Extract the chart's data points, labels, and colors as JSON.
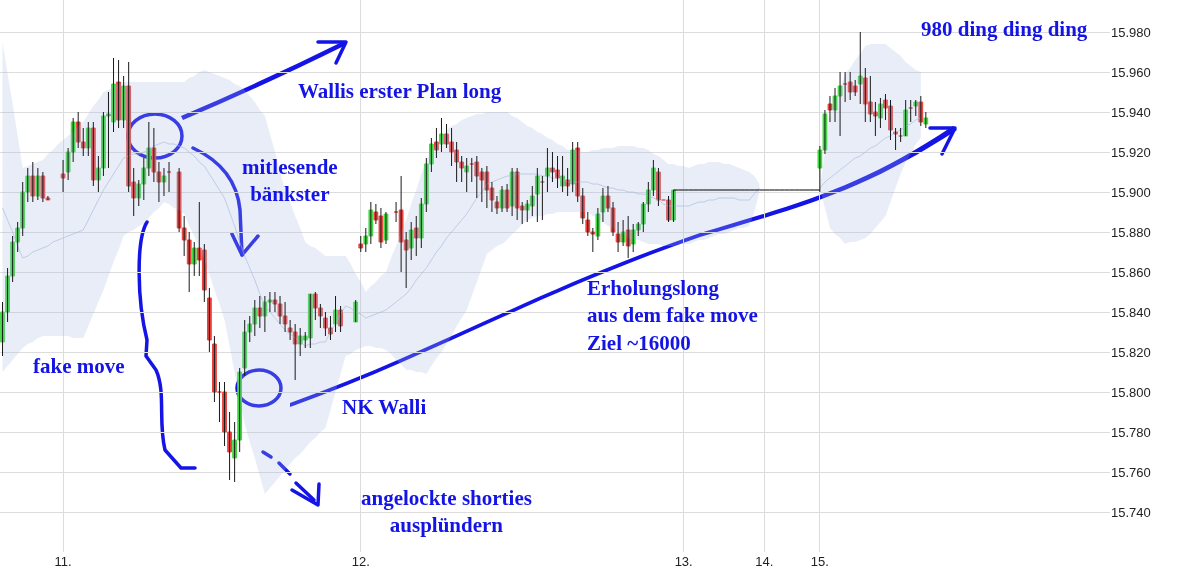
{
  "chart_data": {
    "type": "candlestick",
    "categories": [
      null,
      null,
      null,
      null,
      null,
      null,
      null,
      null,
      null,
      null,
      null,
      null,
      "11.",
      null,
      null,
      null,
      null,
      null,
      null,
      null,
      null,
      null,
      null,
      null,
      null,
      null,
      null,
      null,
      null,
      null,
      null,
      null,
      null,
      null,
      null,
      null,
      null,
      null,
      null,
      null,
      null,
      null,
      null,
      null,
      null,
      null,
      null,
      null,
      null,
      null,
      null,
      null,
      null,
      null,
      null,
      null,
      null,
      null,
      null,
      null,
      null,
      null,
      null,
      null,
      null,
      null,
      null,
      null,
      null,
      null,
      null,
      "12.",
      null,
      null,
      null,
      null,
      null,
      null,
      null,
      null,
      null,
      null,
      null,
      null,
      null,
      null,
      null,
      null,
      null,
      null,
      null,
      null,
      null,
      null,
      null,
      null,
      null,
      null,
      null,
      null,
      null,
      null,
      null,
      null,
      null,
      null,
      null,
      null,
      null,
      null,
      null,
      null,
      null,
      null,
      null,
      null,
      null,
      null,
      null,
      null,
      null,
      null,
      null,
      null,
      null,
      null,
      null,
      null,
      null,
      null,
      null,
      null,
      null,
      null,
      null,
      "13.",
      null,
      null,
      null,
      null,
      null,
      null,
      null,
      null,
      null,
      null,
      null,
      null,
      null,
      null,
      null,
      "14.",
      null,
      null,
      null,
      null,
      null,
      null,
      null,
      null,
      null,
      null,
      "15.",
      null,
      null,
      null,
      null,
      null,
      null,
      null,
      null,
      null,
      null,
      null,
      null,
      null,
      null,
      null,
      null,
      null,
      null,
      null,
      null,
      null,
      null,
      null,
      null,
      null,
      null,
      null,
      null,
      null,
      null,
      null,
      null,
      null,
      null,
      null,
      null,
      null,
      null,
      null,
      null,
      null,
      null,
      null,
      null,
      null,
      null,
      null,
      null,
      null,
      null,
      null,
      null,
      null,
      null,
      null,
      null,
      null
    ],
    "ylim": [
      15720,
      15996
    ],
    "yticks": [
      {
        "value": 15740,
        "label": "15.740"
      },
      {
        "value": 15760,
        "label": "15.760"
      },
      {
        "value": 15780,
        "label": "15.780"
      },
      {
        "value": 15800,
        "label": "15.800"
      },
      {
        "value": 15820,
        "label": "15.820"
      },
      {
        "value": 15840,
        "label": "15.840"
      },
      {
        "value": 15860,
        "label": "15.860"
      },
      {
        "value": 15880,
        "label": "15.880"
      },
      {
        "value": 15900,
        "label": "15.900"
      },
      {
        "value": 15920,
        "label": "15.920"
      },
      {
        "value": 15940,
        "label": "15.940"
      },
      {
        "value": 15960,
        "label": "15.960"
      },
      {
        "value": 15980,
        "label": "15.980"
      }
    ],
    "grid": true,
    "annotations": [
      "980 ding ding ding",
      "Wallis erster Plan long",
      "mitlesende\nbänkster",
      "fake move",
      "NK Walli",
      "angelockte shorties\nausplündern",
      "Erholungslong\naus dem fake move\nZiel ~16000"
    ],
    "series": [
      {
        "type": "line",
        "color": "#a4b8de",
        "values": [
          15892,
          15886,
          15880,
          15873,
          15867,
          15868,
          15870,
          15871,
          15872,
          15873,
          15875,
          15876,
          15877,
          15878,
          15879,
          15880,
          15881,
          15886,
          15891,
          15896,
          15901,
          15905,
          15909,
          15913,
          15917,
          15918,
          15919,
          15919,
          15920,
          15921,
          15923,
          15924,
          15925,
          15924,
          15924,
          15923,
          15922,
          15920,
          15918,
          15915,
          15913,
          15909,
          15905,
          15901,
          15897,
          15890,
          15883,
          15875,
          15868,
          15862,
          15856,
          15849,
          15843,
          15840,
          15837,
          15834,
          15831,
          15829,
          15827,
          15825,
          15823,
          15824,
          15824,
          15825,
          15825,
          15830,
          15834,
          15839,
          15843,
          15842,
          15840,
          15839,
          15837,
          15838,
          15839,
          15840,
          15841,
          15843,
          15845,
          15847,
          15849,
          15852,
          15856,
          15859,
          15862,
          15866,
          15870,
          15873,
          15877,
          15880,
          15883,
          15886,
          15889,
          15893,
          15897,
          15900,
          15904,
          15905,
          15906,
          15907,
          15908,
          15908,
          15909,
          15909,
          15909,
          15909,
          15909,
          15908,
          15908,
          15907,
          15907,
          15906,
          15905,
          15905,
          15905,
          15905,
          15905,
          15904,
          15904,
          15903,
          15902,
          15902,
          15901,
          15901,
          15900,
          15900,
          15899,
          15899,
          15898,
          15897,
          15896,
          15894,
          15893,
          15893,
          15893,
          15893,
          15893,
          15894,
          15895,
          15895,
          15896,
          15896,
          15897,
          15897,
          15897,
          15897,
          15896,
          15896,
          15896,
          15899,
          15902,
          null,
          null,
          null,
          null,
          null,
          null,
          null,
          null,
          null,
          null,
          null,
          15902,
          15905,
          15907,
          15909,
          15911,
          15913,
          15915,
          15917,
          15918,
          15920,
          15922,
          15923,
          15925,
          15927,
          15928,
          15930,
          15931,
          15933,
          15934,
          15936,
          15937,
          null,
          null,
          null,
          null,
          null,
          null,
          null,
          null,
          null,
          null,
          null,
          null,
          null,
          null,
          null,
          null,
          null,
          null,
          null,
          null,
          null,
          null,
          null,
          null,
          null,
          null,
          null,
          null,
          null,
          null,
          null,
          null,
          null,
          null,
          null,
          null,
          null
        ],
        "upper": [
          15975,
          15959,
          15944,
          15928,
          15912,
          15913,
          15914,
          15915,
          15916,
          15919,
          15921,
          15924,
          15926,
          15928,
          15930,
          15933,
          15935,
          15939,
          15943,
          15946,
          15950,
          15951,
          15953,
          15954,
          15955,
          15955,
          15955,
          15955,
          15955,
          15955,
          15955,
          15955,
          15955,
          15955,
          15955,
          15955,
          15955,
          15957,
          15958,
          15960,
          15961,
          15960,
          15959,
          15958,
          15957,
          15956,
          15954,
          15953,
          15951,
          15948,
          15945,
          15941,
          15938,
          15929,
          15920,
          15910,
          15901,
          15895,
          15888,
          15882,
          15875,
          15873,
          15872,
          15870,
          15868,
          15868,
          15868,
          15868,
          15868,
          15864,
          15859,
          15855,
          15850,
          15853,
          15855,
          15858,
          15860,
          15867,
          15873,
          15880,
          15886,
          15894,
          15901,
          15909,
          15916,
          15920,
          15924,
          15927,
          15931,
          15933,
          15934,
          15936,
          15937,
          15938,
          15939,
          15939,
          15940,
          15940,
          15940,
          15940,
          15940,
          15938,
          15937,
          15935,
          15933,
          15932,
          15930,
          15929,
          15927,
          15926,
          15924,
          15923,
          15921,
          15921,
          15921,
          15920,
          15920,
          15921,
          15921,
          15922,
          15922,
          15922,
          15923,
          15923,
          15923,
          15923,
          15922,
          15922,
          15921,
          15919,
          15918,
          15916,
          15914,
          15914,
          15913,
          15913,
          15912,
          15913,
          15914,
          15914,
          15915,
          15915,
          15915,
          15914,
          15914,
          15913,
          15912,
          15911,
          15910,
          15908,
          15904,
          null,
          null,
          null,
          null,
          null,
          null,
          null,
          null,
          null,
          null,
          null,
          15902,
          15920,
          15938,
          15945,
          15952,
          15959,
          15962,
          15966,
          15969,
          15973,
          15974,
          15974,
          15974,
          15974,
          15972,
          15970,
          15968,
          15965,
          15963,
          15961,
          15960,
          null,
          null,
          null,
          null,
          null,
          null,
          null,
          null,
          null,
          null,
          null,
          null,
          null,
          null,
          null,
          null,
          null,
          null,
          null,
          null,
          null,
          null,
          null,
          null,
          null,
          null,
          null,
          null,
          null,
          null,
          null,
          null,
          null,
          null,
          null,
          null,
          null
        ],
        "lower": [
          15810,
          15813,
          15816,
          15819,
          15822,
          15824,
          15825,
          15827,
          15828,
          15828,
          15828,
          15828,
          15828,
          15828,
          15827,
          15827,
          15827,
          15833,
          15839,
          15845,
          15851,
          15858,
          15865,
          15871,
          15878,
          15880,
          15881,
          15883,
          15884,
          15887,
          15890,
          15892,
          15895,
          15894,
          15892,
          15891,
          15889,
          15883,
          15878,
          15872,
          15866,
          15859,
          15851,
          15844,
          15836,
          15823,
          15810,
          15797,
          15784,
          15775,
          15767,
          15758,
          15749,
          15752,
          15755,
          15758,
          15761,
          15764,
          15767,
          15769,
          15772,
          15775,
          15777,
          15780,
          15782,
          15791,
          15800,
          15809,
          15818,
          15819,
          15821,
          15822,
          15823,
          15823,
          15822,
          15822,
          15821,
          15819,
          15816,
          15814,
          15811,
          15811,
          15810,
          15810,
          15809,
          15813,
          15817,
          15820,
          15824,
          15828,
          15833,
          15837,
          15841,
          15848,
          15855,
          15862,
          15869,
          15871,
          15873,
          15874,
          15876,
          15879,
          15881,
          15884,
          15886,
          15887,
          15888,
          15888,
          15889,
          15889,
          15890,
          15890,
          15890,
          15890,
          15890,
          15890,
          15890,
          15888,
          15887,
          15885,
          15883,
          15882,
          15880,
          15879,
          15877,
          15876,
          15876,
          15875,
          15874,
          15874,
          15874,
          15873,
          15873,
          15873,
          15874,
          15874,
          15874,
          15875,
          15876,
          15876,
          15877,
          15878,
          15879,
          15879,
          15880,
          15881,
          15882,
          15882,
          15883,
          15890,
          15900,
          null,
          null,
          null,
          null,
          null,
          null,
          null,
          null,
          null,
          null,
          null,
          15902,
          15892,
          15882,
          15879,
          15877,
          15874,
          15875,
          15875,
          15876,
          15877,
          15879,
          15882,
          15885,
          15888,
          15895,
          15902,
          15909,
          15915,
          15919,
          15924,
          15927,
          null,
          null,
          null,
          null,
          null,
          null,
          null,
          null,
          null,
          null,
          null,
          null,
          null,
          null,
          null,
          null,
          null,
          null,
          null,
          null,
          null,
          null,
          null,
          null,
          null,
          null,
          null,
          null,
          null,
          null,
          null,
          null,
          null,
          null,
          null,
          null,
          null
        ]
      },
      {
        "type": "line",
        "color": "#000000",
        "values": [
          null,
          null,
          null,
          null,
          null,
          null,
          null,
          null,
          null,
          null,
          null,
          null,
          null,
          null,
          null,
          null,
          null,
          null,
          null,
          null,
          null,
          null,
          null,
          null,
          null,
          null,
          null,
          null,
          null,
          null,
          null,
          null,
          null,
          null,
          null,
          null,
          null,
          null,
          null,
          null,
          null,
          null,
          null,
          null,
          null,
          null,
          null,
          null,
          null,
          null,
          null,
          null,
          null,
          null,
          null,
          null,
          null,
          null,
          null,
          null,
          null,
          null,
          null,
          null,
          null,
          null,
          null,
          null,
          null,
          null,
          null,
          null,
          null,
          null,
          null,
          null,
          null,
          null,
          null,
          null,
          null,
          null,
          null,
          null,
          null,
          null,
          null,
          null,
          null,
          null,
          null,
          null,
          null,
          null,
          null,
          null,
          null,
          null,
          null,
          null,
          null,
          null,
          null,
          null,
          null,
          null,
          null,
          null,
          null,
          null,
          null,
          null,
          null,
          null,
          null,
          null,
          null,
          null,
          null,
          null,
          null,
          null,
          null,
          null,
          null,
          null,
          null,
          null,
          null,
          null,
          null,
          null,
          null,
          15901,
          15901,
          15901,
          15901,
          15901,
          15901,
          15901,
          15901,
          15901,
          15901,
          15901,
          15901,
          15901,
          15901,
          15901,
          15901,
          15901,
          15901,
          15901,
          15901,
          15901,
          15901,
          15901,
          15901,
          15901,
          15901,
          15901,
          15901,
          15901,
          15901,
          null,
          null,
          null,
          null,
          null,
          null,
          null,
          null,
          null,
          null,
          null,
          null,
          null,
          null,
          null,
          null,
          null,
          null,
          null,
          null,
          null,
          null,
          null,
          null,
          null,
          null,
          null,
          null,
          null,
          null,
          null,
          null,
          null,
          null,
          null,
          null,
          null,
          null,
          null,
          null,
          null,
          null,
          null,
          null,
          null,
          null,
          null,
          null,
          null,
          null,
          null,
          null,
          null,
          null,
          null,
          null,
          null
        ]
      },
      {
        "ohlc": [
          [
            15825,
            15845,
            15818,
            15840
          ],
          [
            15840,
            15862,
            15835,
            15858
          ],
          [
            15858,
            15878,
            15855,
            15875
          ],
          [
            15875,
            15885,
            15870,
            15882
          ],
          [
            15882,
            15905,
            15878,
            15900
          ],
          [
            15900,
            15912,
            15895,
            15908
          ],
          [
            15908,
            15915,
            15895,
            15898
          ],
          [
            15898,
            15912,
            15896,
            15908
          ],
          [
            15908,
            15910,
            15895,
            15897
          ],
          [
            15897,
            15898,
            15896,
            15896
          ],
          null,
          null,
          [
            15909,
            15916,
            15900,
            15907
          ],
          [
            15910,
            15922,
            15906,
            15920
          ],
          [
            15920,
            15937,
            15915,
            15935
          ],
          [
            15935,
            15940,
            15922,
            15925
          ],
          [
            15925,
            15932,
            15918,
            15922
          ],
          [
            15922,
            15935,
            15918,
            15932
          ],
          [
            15932,
            15935,
            15903,
            15906
          ],
          [
            15906,
            15918,
            15900,
            15912
          ],
          [
            15912,
            15940,
            15908,
            15938
          ],
          [
            15938,
            15950,
            15912,
            15939
          ],
          [
            15935,
            15967,
            15930,
            15954
          ],
          [
            15955,
            15966,
            15932,
            15936
          ],
          [
            15936,
            15958,
            15932,
            15953
          ],
          [
            15953,
            15965,
            15900,
            15903
          ],
          [
            15905,
            15912,
            15888,
            15897
          ],
          [
            15897,
            15906,
            15893,
            15904
          ],
          [
            15904,
            15917,
            15896,
            15912
          ],
          [
            15912,
            15935,
            15908,
            15922
          ],
          [
            15922,
            15932,
            15905,
            15910
          ],
          [
            15910,
            15915,
            15895,
            15905
          ],
          [
            15905,
            15912,
            15898,
            15908
          ],
          [
            15910,
            15915,
            15900,
            15910
          ],
          null,
          [
            15910,
            15912,
            15880,
            15882
          ],
          [
            15882,
            15888,
            15868,
            15876
          ],
          [
            15876,
            15880,
            15850,
            15864
          ],
          [
            15864,
            15875,
            15858,
            15872
          ],
          [
            15872,
            15895,
            15858,
            15866
          ],
          [
            15871,
            15874,
            15845,
            15851
          ],
          [
            15847,
            15852,
            15820,
            15826
          ],
          [
            15824,
            15828,
            15795,
            15800
          ],
          [
            15800,
            15805,
            15785,
            15800
          ],
          [
            15800,
            15805,
            15773,
            15780
          ],
          [
            15780,
            15790,
            15756,
            15770
          ],
          [
            15767,
            15785,
            15755,
            15776
          ],
          [
            15776,
            15812,
            15770,
            15810
          ],
          [
            15812,
            15836,
            15808,
            15830
          ],
          [
            15830,
            15838,
            15825,
            15834
          ],
          [
            15834,
            15846,
            15828,
            15842
          ],
          [
            15842,
            15848,
            15832,
            15838
          ],
          [
            15838,
            15848,
            15830,
            15845
          ],
          [
            15845,
            15850,
            15840,
            15846
          ],
          [
            15846,
            15850,
            15840,
            15844
          ],
          [
            15844,
            15848,
            15834,
            15838
          ],
          [
            15838,
            15845,
            15830,
            15834
          ],
          [
            15832,
            15836,
            15826,
            15830
          ],
          [
            15830,
            15834,
            15806,
            15824
          ],
          [
            15824,
            15832,
            15818,
            15828
          ],
          [
            15826,
            15830,
            15822,
            15828
          ],
          [
            15827,
            15849,
            15822,
            15849
          ],
          [
            15849,
            15850,
            15836,
            15842
          ],
          [
            15842,
            15844,
            15832,
            15838
          ],
          [
            15837,
            15840,
            15828,
            15832
          ],
          [
            15832,
            15838,
            15826,
            15829
          ],
          [
            15834,
            15848,
            15830,
            15841
          ],
          [
            15841,
            15843,
            15830,
            15833
          ],
          null,
          null,
          [
            15835,
            15846,
            15835,
            15845
          ],
          [
            15874,
            15878,
            15870,
            15872
          ],
          [
            15874,
            15882,
            15870,
            15878
          ],
          [
            15878,
            15895,
            15874,
            15891
          ],
          [
            15890,
            15894,
            15884,
            15886
          ],
          [
            15888,
            15892,
            15872,
            15875
          ],
          [
            15876,
            15890,
            15874,
            15889
          ],
          null,
          [
            15890,
            15895,
            15885,
            15890
          ],
          [
            15891,
            15908,
            15860,
            15875
          ],
          [
            15876,
            15880,
            15852,
            15871
          ],
          [
            15872,
            15885,
            15866,
            15881
          ],
          [
            15882,
            15888,
            15868,
            15877
          ],
          [
            15877,
            15897,
            15872,
            15894
          ],
          [
            15894,
            15917,
            15890,
            15914
          ],
          [
            15914,
            15927,
            15910,
            15924
          ],
          [
            15925,
            15932,
            15917,
            15921
          ],
          [
            15924,
            15937,
            15920,
            15929
          ],
          [
            15929,
            15934,
            15922,
            15924
          ],
          [
            15925,
            15932,
            15913,
            15920
          ],
          [
            15921,
            15925,
            15905,
            15915
          ],
          [
            15915,
            15918,
            15905,
            15912
          ],
          [
            15910,
            15917,
            15900,
            15913
          ],
          [
            15914,
            15917,
            15905,
            15914
          ],
          [
            15915,
            15918,
            15897,
            15908
          ],
          [
            15910,
            15912,
            15895,
            15906
          ],
          [
            15910,
            15913,
            15892,
            15901
          ],
          [
            15902,
            15905,
            15890,
            15896
          ],
          [
            15895,
            15898,
            15889,
            15892
          ],
          [
            15892,
            15903,
            15890,
            15901
          ],
          [
            15901,
            15904,
            15890,
            15892
          ],
          [
            15893,
            15912,
            15888,
            15910
          ],
          [
            15910,
            15912,
            15886,
            15892
          ],
          [
            15893,
            15895,
            15884,
            15891
          ],
          [
            15891,
            15896,
            15885,
            15894
          ],
          [
            15893,
            15903,
            15888,
            15898
          ],
          [
            15899,
            15912,
            15885,
            15908
          ],
          [
            15905,
            15908,
            15886,
            15905
          ],
          [
            15908,
            15922,
            15900,
            15912
          ],
          [
            15912,
            15920,
            15905,
            15910
          ],
          [
            15911,
            15918,
            15902,
            15907
          ],
          [
            15903,
            15918,
            15900,
            15908
          ],
          [
            15906,
            15912,
            15898,
            15903
          ],
          [
            15904,
            15925,
            15900,
            15921
          ],
          [
            15922,
            15925,
            15895,
            15898
          ],
          [
            15898,
            15902,
            15884,
            15887
          ],
          [
            15886,
            15890,
            15878,
            15880
          ],
          [
            15880,
            15882,
            15870,
            15879
          ],
          [
            15878,
            15892,
            15876,
            15889
          ],
          [
            15890,
            15902,
            15885,
            15898
          ],
          [
            15898,
            15903,
            15890,
            15892
          ],
          [
            15892,
            15895,
            15878,
            15880
          ],
          [
            15879,
            15885,
            15870,
            15875
          ],
          [
            15875,
            15886,
            15873,
            15880
          ],
          [
            15881,
            15888,
            15867,
            15873
          ],
          [
            15874,
            15884,
            15870,
            15881
          ],
          [
            15881,
            15885,
            15878,
            15884
          ],
          [
            15884,
            15895,
            15880,
            15894
          ],
          [
            15894,
            15905,
            15890,
            15901
          ],
          [
            15901,
            15916,
            15898,
            15912
          ],
          [
            15910,
            15912,
            15893,
            15896
          ],
          [
            15896,
            15896,
            15896,
            15896
          ],
          [
            15896,
            15898,
            15885,
            15886
          ],
          [
            15886,
            15901,
            15885,
            15901
          ],
          null,
          null,
          null,
          null,
          null,
          null,
          null,
          null,
          null,
          null,
          null,
          null,
          null,
          null,
          null,
          null,
          null,
          null,
          null,
          null,
          null,
          null,
          null,
          null,
          null,
          null,
          null,
          null,
          [
            15912,
            15923,
            15900,
            15921
          ],
          [
            15921,
            15941,
            15919,
            15939
          ],
          [
            15944,
            15948,
            15935,
            15941
          ],
          [
            15941,
            15952,
            15935,
            15948
          ],
          [
            15948,
            15960,
            15928,
            15953
          ],
          [
            15954,
            15960,
            15945,
            15954
          ],
          [
            15955,
            15960,
            15946,
            15950
          ],
          [
            15953,
            15956,
            15948,
            15950
          ],
          [
            15954,
            15980,
            15944,
            15958
          ],
          [
            15957,
            15962,
            15935,
            15944
          ],
          [
            15945,
            15958,
            15935,
            15939
          ],
          [
            15940,
            15945,
            15928,
            15938
          ],
          [
            15937,
            15947,
            15932,
            15944
          ],
          [
            15946,
            15949,
            15936,
            15942
          ],
          [
            15943,
            15946,
            15926,
            15931
          ],
          [
            15930,
            15932,
            15921,
            15929
          ],
          [
            15928,
            15932,
            15925,
            15928
          ],
          [
            15928,
            15946,
            15928,
            15941
          ],
          [
            15942,
            15946,
            15935,
            15942
          ],
          [
            15943,
            15946,
            15938,
            15945
          ],
          [
            15945,
            15948,
            15933,
            15935
          ],
          [
            15934,
            15940,
            15932,
            15937
          ],
          null,
          null,
          null,
          null,
          null,
          null,
          null,
          null,
          null,
          null,
          null,
          null,
          null,
          null,
          null,
          null,
          null,
          null,
          null,
          null,
          null,
          null,
          null,
          null,
          null,
          null,
          null,
          null,
          null,
          null,
          null,
          null,
          null,
          null,
          null,
          null
        ],
        "colors": [
          "#3ed83e",
          "#3ed83e",
          "#3ed83e",
          "#3ed83e",
          "#3ed83e",
          "#3ed83e",
          "#e8413c",
          "#3ed83e",
          "#e8413c",
          "#e8413c",
          null,
          null,
          "#e8413c",
          "#3ed83e",
          "#3ed83e",
          "#e8413c",
          "#e8413c",
          "#3ed83e",
          "#e8413c",
          "#3ed83e",
          "#3ed83e",
          "#3ed83e",
          "#3ed83e",
          "#e8413c",
          "#3ed83e",
          "#e8413c",
          "#e8413c",
          "#3ed83e",
          "#3ed83e",
          "#3ed83e",
          "#e8413c",
          "#e8413c",
          "#3ed83e",
          "#e8413c",
          null,
          "#e8413c",
          "#e8413c",
          "#e8413c",
          "#3ed83e",
          "#e8413c",
          "#e8413c",
          "#e8413c",
          "#e8413c",
          "#e8413c",
          "#e8413c",
          "#e8413c",
          "#3ed83e",
          "#3ed83e",
          "#3ed83e",
          "#3ed83e",
          "#3ed83e",
          "#e8413c",
          "#3ed83e",
          "#3ed83e",
          "#e8413c",
          "#e8413c",
          "#e8413c",
          "#e8413c",
          "#e8413c",
          "#3ed83e",
          "#3ed83e",
          "#3ed83e",
          "#e8413c",
          "#e8413c",
          "#e8413c",
          "#e8413c",
          "#3ed83e",
          "#e8413c",
          null,
          null,
          "#3ed83e",
          "#e8413c",
          "#3ed83e",
          "#3ed83e",
          "#e8413c",
          "#e8413c",
          "#3ed83e",
          null,
          "#e8413c",
          "#e8413c",
          "#e8413c",
          "#3ed83e",
          "#e8413c",
          "#3ed83e",
          "#3ed83e",
          "#3ed83e",
          "#e8413c",
          "#3ed83e",
          "#e8413c",
          "#e8413c",
          "#e8413c",
          "#e8413c",
          "#3ed83e",
          "#e8413c",
          "#e8413c",
          "#e8413c",
          "#e8413c",
          "#e8413c",
          "#e8413c",
          "#3ed83e",
          "#e8413c",
          "#3ed83e",
          "#e8413c",
          "#e8413c",
          "#3ed83e",
          "#3ed83e",
          "#3ed83e",
          "#e8413c",
          "#3ed83e",
          "#e8413c",
          "#e8413c",
          "#3ed83e",
          "#e8413c",
          "#3ed83e",
          "#e8413c",
          "#e8413c",
          "#e8413c",
          "#e8413c",
          "#3ed83e",
          "#3ed83e",
          "#e8413c",
          "#e8413c",
          "#e8413c",
          "#3ed83e",
          "#e8413c",
          "#3ed83e",
          "#3ed83e",
          "#3ed83e",
          "#3ed83e",
          "#3ed83e",
          "#e8413c",
          "#e8413c",
          "#e8413c",
          "#3ed83e",
          null,
          null,
          null,
          null,
          null,
          null,
          null,
          null,
          null,
          null,
          null,
          null,
          null,
          null,
          null,
          null,
          null,
          null,
          null,
          null,
          null,
          null,
          null,
          null,
          null,
          null,
          null,
          null,
          "#3ed83e",
          "#3ed83e",
          "#e8413c",
          "#3ed83e",
          "#3ed83e",
          "#e8413c",
          "#e8413c",
          "#e8413c",
          "#3ed83e",
          "#e8413c",
          "#e8413c",
          "#e8413c",
          "#3ed83e",
          "#e8413c",
          "#e8413c",
          "#e8413c",
          "#e8413c",
          "#3ed83e",
          "#e8413c",
          "#3ed83e",
          "#e8413c",
          "#3ed83e",
          null,
          null,
          null,
          null,
          null,
          null,
          null,
          null,
          null,
          null,
          null,
          null,
          null,
          null,
          null,
          null,
          null,
          null,
          null,
          null,
          null,
          null,
          null,
          null,
          null,
          null,
          null,
          null,
          null,
          null,
          null,
          null,
          null,
          null,
          null,
          null
        ]
      }
    ]
  }
}
